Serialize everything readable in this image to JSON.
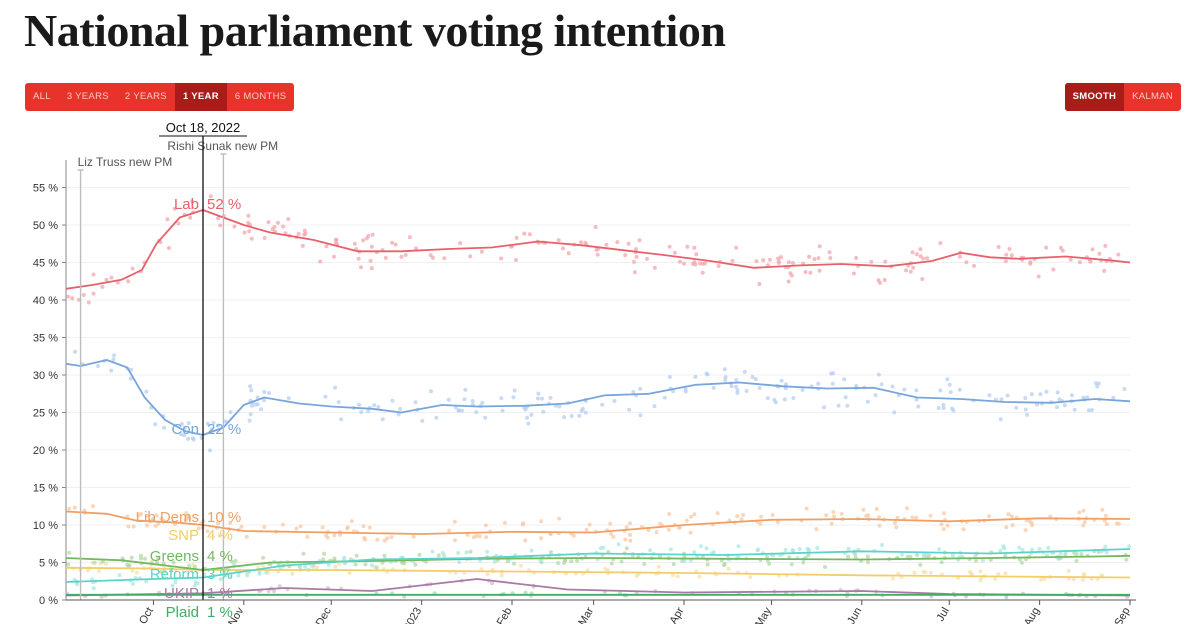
{
  "title": "National parliament voting intention",
  "range_buttons": [
    {
      "label": "ALL",
      "active": false
    },
    {
      "label": "3 YEARS",
      "active": false
    },
    {
      "label": "2 YEARS",
      "active": false
    },
    {
      "label": "1 YEAR",
      "active": true
    },
    {
      "label": "6 MONTHS",
      "active": false
    }
  ],
  "method_buttons": [
    {
      "label": "SMOOTH",
      "active": true
    },
    {
      "label": "KALMAN",
      "active": false
    }
  ],
  "colors": {
    "accent": "#e8332b",
    "accent_dark": "#a81d18"
  },
  "chart_data": {
    "type": "line",
    "title": "National parliament voting intention",
    "x_range": [
      "2022-09-01",
      "2023-09-01"
    ],
    "ylim": [
      0,
      58
    ],
    "y_ticks": [
      0,
      5,
      10,
      15,
      20,
      25,
      30,
      35,
      40,
      45,
      50,
      55
    ],
    "y_tick_labels": [
      "0 %",
      "5 %",
      "10 %",
      "15 %",
      "20 %",
      "25 %",
      "30 %",
      "35 %",
      "40 %",
      "45 %",
      "50 %",
      "55 %"
    ],
    "x_ticks": [
      {
        "date": "2022-10-01",
        "label": "Oct"
      },
      {
        "date": "2022-11-01",
        "label": "Nov"
      },
      {
        "date": "2022-12-01",
        "label": "Dec"
      },
      {
        "date": "2023-01-01",
        "label": "2023"
      },
      {
        "date": "2023-02-01",
        "label": "Feb"
      },
      {
        "date": "2023-03-01",
        "label": "Mar"
      },
      {
        "date": "2023-04-01",
        "label": "Apr"
      },
      {
        "date": "2023-05-01",
        "label": "May"
      },
      {
        "date": "2023-06-01",
        "label": "Jun"
      },
      {
        "date": "2023-07-01",
        "label": "Jul"
      },
      {
        "date": "2023-08-01",
        "label": "Aug"
      },
      {
        "date": "2023-09-01",
        "label": "Sep"
      }
    ],
    "events": [
      {
        "date": "2022-09-06",
        "label": "Liz Truss new PM"
      },
      {
        "date": "2022-10-25",
        "label": "Rishi Sunak new PM"
      }
    ],
    "hover": {
      "date": "2022-10-18",
      "label": "Oct 18, 2022"
    },
    "series": [
      {
        "name": "Lab",
        "color": "#e8606b",
        "dot_color": "#f3a6ad",
        "hover_label": "Lab",
        "hover_value": "52 %",
        "points": [
          [
            "2022-09-01",
            41.5
          ],
          [
            "2022-09-10",
            42.0
          ],
          [
            "2022-09-20",
            42.7
          ],
          [
            "2022-09-27",
            44.0
          ],
          [
            "2022-10-02",
            47.5
          ],
          [
            "2022-10-10",
            51.0
          ],
          [
            "2022-10-18",
            52.0
          ],
          [
            "2022-10-25",
            51.0
          ],
          [
            "2022-11-01",
            50.0
          ],
          [
            "2022-11-10",
            49.0
          ],
          [
            "2022-11-25",
            48.0
          ],
          [
            "2022-12-10",
            46.5
          ],
          [
            "2022-12-25",
            46.5
          ],
          [
            "2023-01-10",
            46.8
          ],
          [
            "2023-01-25",
            47.0
          ],
          [
            "2023-02-10",
            47.8
          ],
          [
            "2023-02-25",
            47.3
          ],
          [
            "2023-03-10",
            46.7
          ],
          [
            "2023-03-25",
            46.0
          ],
          [
            "2023-04-10",
            45.2
          ],
          [
            "2023-04-25",
            44.3
          ],
          [
            "2023-05-10",
            44.6
          ],
          [
            "2023-05-25",
            44.8
          ],
          [
            "2023-06-10",
            44.5
          ],
          [
            "2023-06-25",
            45.2
          ],
          [
            "2023-07-05",
            46.3
          ],
          [
            "2023-07-15",
            45.7
          ],
          [
            "2023-07-25",
            45.5
          ],
          [
            "2023-08-10",
            45.8
          ],
          [
            "2023-08-25",
            45.3
          ],
          [
            "2023-09-01",
            45.0
          ]
        ]
      },
      {
        "name": "Con",
        "color": "#78a5dc",
        "dot_color": "#b6cdf0",
        "hover_label": "Con",
        "hover_value": "22 %",
        "points": [
          [
            "2022-09-01",
            31.5
          ],
          [
            "2022-09-06",
            31.2
          ],
          [
            "2022-09-15",
            32.0
          ],
          [
            "2022-09-22",
            31.0
          ],
          [
            "2022-09-28",
            27.0
          ],
          [
            "2022-10-05",
            24.0
          ],
          [
            "2022-10-12",
            22.5
          ],
          [
            "2022-10-18",
            22.0
          ],
          [
            "2022-10-25",
            23.0
          ],
          [
            "2022-11-01",
            26.0
          ],
          [
            "2022-11-08",
            27.0
          ],
          [
            "2022-11-20",
            26.2
          ],
          [
            "2022-12-01",
            25.8
          ],
          [
            "2022-12-15",
            25.5
          ],
          [
            "2022-12-25",
            25.0
          ],
          [
            "2023-01-08",
            26.0
          ],
          [
            "2023-01-20",
            25.8
          ],
          [
            "2023-02-05",
            25.9
          ],
          [
            "2023-02-20",
            26.2
          ],
          [
            "2023-03-05",
            27.3
          ],
          [
            "2023-03-20",
            27.5
          ],
          [
            "2023-04-05",
            28.7
          ],
          [
            "2023-04-20",
            29.0
          ],
          [
            "2023-05-05",
            28.5
          ],
          [
            "2023-05-20",
            28.2
          ],
          [
            "2023-06-05",
            28.3
          ],
          [
            "2023-06-20",
            27.0
          ],
          [
            "2023-07-05",
            26.8
          ],
          [
            "2023-07-20",
            26.4
          ],
          [
            "2023-08-05",
            26.3
          ],
          [
            "2023-08-20",
            26.8
          ],
          [
            "2023-09-01",
            26.5
          ]
        ]
      },
      {
        "name": "Lib Dems",
        "color": "#f0a064",
        "dot_color": "#f8c8a4",
        "hover_label": "Lib Dems",
        "hover_value": "10 %",
        "points": [
          [
            "2022-09-01",
            11.8
          ],
          [
            "2022-09-15",
            11.5
          ],
          [
            "2022-09-25",
            10.6
          ],
          [
            "2022-10-10",
            10.3
          ],
          [
            "2022-10-18",
            10.0
          ],
          [
            "2022-11-01",
            9.2
          ],
          [
            "2022-12-01",
            9.0
          ],
          [
            "2023-01-01",
            8.8
          ],
          [
            "2023-02-01",
            9.1
          ],
          [
            "2023-03-01",
            9.0
          ],
          [
            "2023-04-01",
            10.0
          ],
          [
            "2023-05-01",
            10.7
          ],
          [
            "2023-06-01",
            10.8
          ],
          [
            "2023-07-01",
            10.5
          ],
          [
            "2023-08-01",
            10.9
          ],
          [
            "2023-09-01",
            10.8
          ]
        ]
      },
      {
        "name": "SNP",
        "color": "#f3cd6a",
        "dot_color": "#f7e0a8",
        "hover_label": "SNP",
        "hover_value": "4 %",
        "points": [
          [
            "2022-09-01",
            4.3
          ],
          [
            "2022-10-01",
            4.2
          ],
          [
            "2022-10-18",
            4.0
          ],
          [
            "2022-12-01",
            4.0
          ],
          [
            "2023-02-01",
            3.8
          ],
          [
            "2023-04-01",
            3.6
          ],
          [
            "2023-06-01",
            3.3
          ],
          [
            "2023-08-01",
            3.1
          ],
          [
            "2023-09-01",
            3.0
          ]
        ]
      },
      {
        "name": "Greens",
        "color": "#74b860",
        "dot_color": "#b3d8a6",
        "hover_label": "Greens",
        "hover_value": "4 %",
        "points": [
          [
            "2022-09-01",
            5.6
          ],
          [
            "2022-09-20",
            5.3
          ],
          [
            "2022-10-18",
            4.0
          ],
          [
            "2022-11-10",
            5.0
          ],
          [
            "2022-12-15",
            5.2
          ],
          [
            "2023-01-20",
            5.5
          ],
          [
            "2023-03-01",
            5.6
          ],
          [
            "2023-04-15",
            5.5
          ],
          [
            "2023-06-01",
            5.4
          ],
          [
            "2023-07-15",
            5.6
          ],
          [
            "2023-08-20",
            5.8
          ],
          [
            "2023-09-01",
            5.9
          ]
        ]
      },
      {
        "name": "Reform",
        "color": "#5cd3c8",
        "dot_color": "#a7e8e1",
        "hover_label": "Reform",
        "hover_value": "3 %",
        "points": [
          [
            "2022-09-01",
            2.4
          ],
          [
            "2022-10-01",
            2.8
          ],
          [
            "2022-10-18",
            3.0
          ],
          [
            "2022-11-15",
            4.6
          ],
          [
            "2022-12-15",
            5.4
          ],
          [
            "2023-01-20",
            5.6
          ],
          [
            "2023-03-01",
            6.2
          ],
          [
            "2023-04-15",
            6.0
          ],
          [
            "2023-06-01",
            6.5
          ],
          [
            "2023-07-15",
            6.2
          ],
          [
            "2023-09-01",
            6.8
          ]
        ]
      },
      {
        "name": "UKIP",
        "color": "#a97aa5",
        "dot_color": "#d3bdd1",
        "hover_label": "UKIP",
        "hover_value": "1 %",
        "points": [
          [
            "2022-09-01",
            0.6
          ],
          [
            "2022-10-18",
            0.9
          ],
          [
            "2022-11-15",
            1.6
          ],
          [
            "2022-12-15",
            1.2
          ],
          [
            "2023-01-20",
            2.8
          ],
          [
            "2023-02-20",
            1.4
          ],
          [
            "2023-04-01",
            1.0
          ],
          [
            "2023-06-01",
            1.2
          ],
          [
            "2023-07-01",
            0.8
          ],
          [
            "2023-09-01",
            0.6
          ]
        ]
      },
      {
        "name": "Plaid",
        "color": "#3fae63",
        "dot_color": "#a5d8b5",
        "hover_label": "Plaid",
        "hover_value": "1 %",
        "points": [
          [
            "2022-09-01",
            0.7
          ],
          [
            "2023-09-01",
            0.7
          ]
        ]
      }
    ]
  }
}
